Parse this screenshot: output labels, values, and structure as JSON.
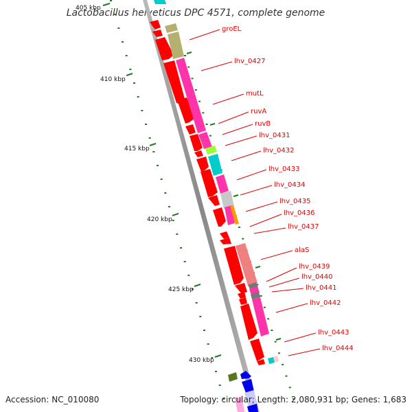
{
  "title": "Lactobacillus helveticus DPC 4571, complete genome",
  "footer": {
    "accession": "Accession: NC_010080",
    "topology": "Topology: circular; Length: 2,080,931 bp; Genes: 1,683"
  },
  "ticks": [
    {
      "label": "405 kbp"
    },
    {
      "label": "410 kbp"
    },
    {
      "label": "415 kbp"
    },
    {
      "label": "420 kbp"
    },
    {
      "label": "425 kbp"
    },
    {
      "label": "430 kbp"
    }
  ],
  "genes": [
    {
      "label": "groEL"
    },
    {
      "label": "lhv_0427"
    },
    {
      "label": "mutL"
    },
    {
      "label": "ruvA"
    },
    {
      "label": "ruvB"
    },
    {
      "label": "lhv_0431"
    },
    {
      "label": "lhv_0432"
    },
    {
      "label": "lhv_0433"
    },
    {
      "label": "lhv_0434"
    },
    {
      "label": "lhv_0435"
    },
    {
      "label": "lhv_0436"
    },
    {
      "label": "lhv_0437"
    },
    {
      "label": "alaS"
    },
    {
      "label": "lhv_0439"
    },
    {
      "label": "lhv_0440"
    },
    {
      "label": "lhv_0441"
    },
    {
      "label": "lhv_0442"
    },
    {
      "label": "lhv_0443"
    },
    {
      "label": "lhv_0444"
    }
  ],
  "colors": {
    "backbone": "#8a8a8a",
    "label_red": "#e00000",
    "arrow_red": "#ff0000",
    "magenta": "#ff33aa",
    "cyan": "#00cccc",
    "olive": "#b5b070",
    "tick_green": "#1f7a1f",
    "salmon": "#f08080",
    "blue": "#0000ee",
    "lime": "#99ff33",
    "grey_bar": "#c8c8c8",
    "dark_grey": "#777777"
  }
}
